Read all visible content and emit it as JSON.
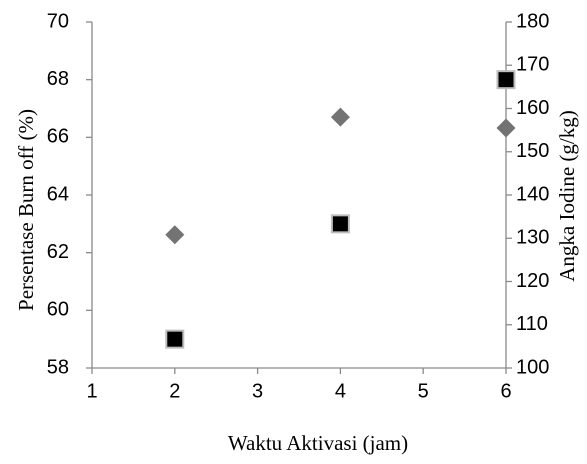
{
  "chart_data": {
    "type": "scatter",
    "xlabel": "Waktu Aktivasi (jam)",
    "ylabel_left": "Persentase Burn off (%)",
    "ylabel_right": "Angka Iodine (g/kg)",
    "xlim": [
      1,
      6
    ],
    "xticks": [
      1,
      2,
      3,
      4,
      5,
      6
    ],
    "ylim_left": [
      58,
      70
    ],
    "yticks_left": [
      58,
      60,
      62,
      64,
      66,
      68,
      70
    ],
    "ylim_right": [
      100,
      180
    ],
    "yticks_right": [
      100,
      110,
      120,
      130,
      140,
      150,
      160,
      170,
      180
    ],
    "grid": false,
    "series": [
      {
        "axis": "left",
        "marker": "square",
        "color": "#000000",
        "x": [
          2,
          4,
          6
        ],
        "y": [
          59.0,
          63.0,
          68.0
        ]
      },
      {
        "axis": "right",
        "marker": "diamond",
        "color": "#737373",
        "x": [
          2,
          4,
          6
        ],
        "y": [
          130.8,
          158.0,
          155.5
        ]
      }
    ]
  }
}
